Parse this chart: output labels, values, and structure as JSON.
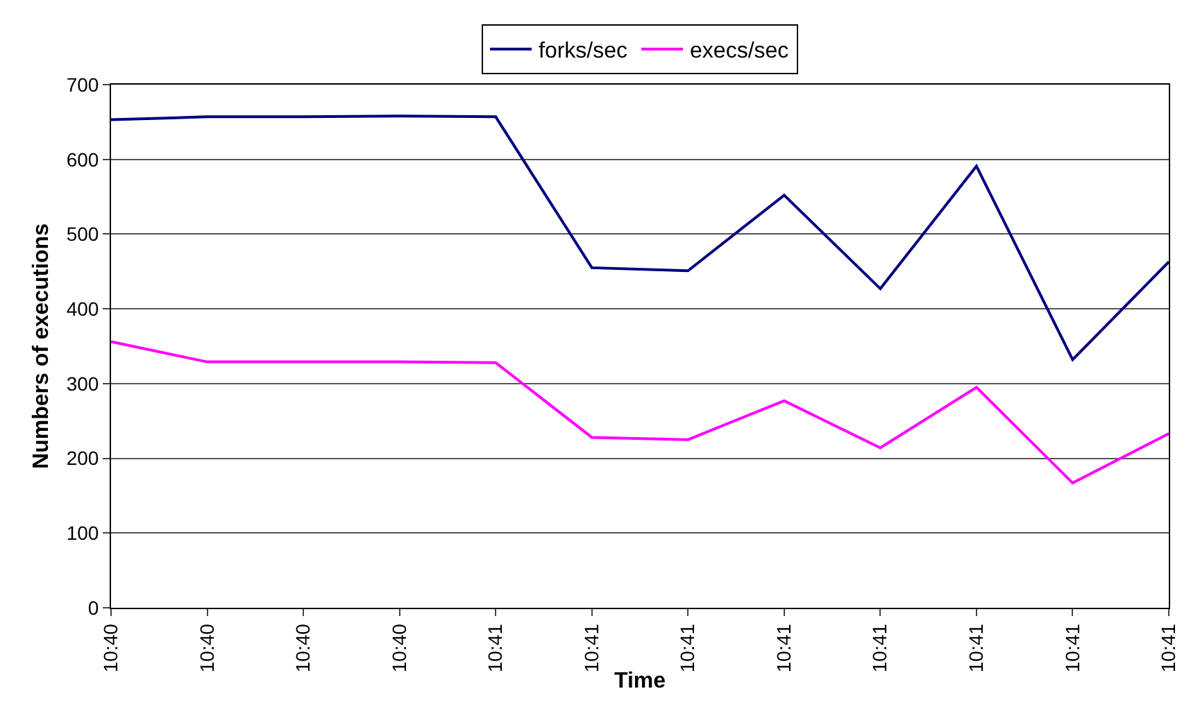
{
  "chart_data": {
    "type": "line",
    "xlabel": "Time",
    "ylabel": "Numbers of executions",
    "categories": [
      "10:40",
      "10:40",
      "10:40",
      "10:40",
      "10:41",
      "10:41",
      "10:41",
      "10:41",
      "10:41",
      "10:41",
      "10:41",
      "10:41"
    ],
    "series": [
      {
        "name": "forks/sec",
        "color": "#000080",
        "values": [
          653,
          657,
          657,
          658,
          657,
          455,
          451,
          552,
          427,
          591,
          332,
          463
        ]
      },
      {
        "name": "execs/sec",
        "color": "#ff00ff",
        "values": [
          356,
          329,
          329,
          329,
          328,
          228,
          225,
          277,
          214,
          295,
          167,
          233
        ]
      }
    ],
    "ylim": [
      0,
      700
    ],
    "yticks": [
      0,
      100,
      200,
      300,
      400,
      500,
      600,
      700
    ],
    "grid": "y",
    "legend": "top",
    "marker": "none",
    "line_style": "solid"
  }
}
